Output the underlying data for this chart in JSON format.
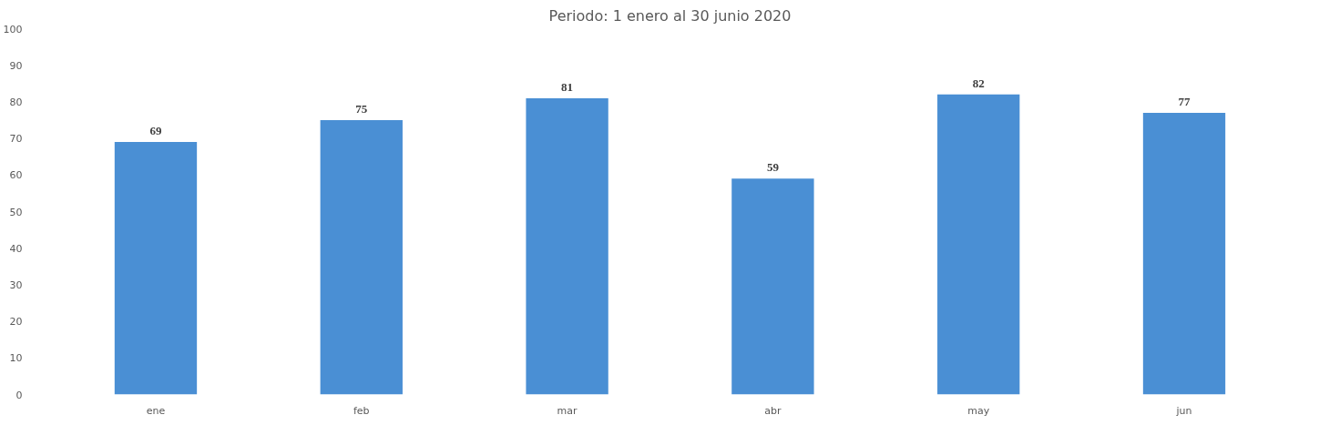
{
  "chart_data": {
    "type": "bar",
    "title": "Periodo: 1 enero al 30 junio 2020",
    "categories": [
      "ene",
      "feb",
      "mar",
      "abr",
      "may",
      "jun"
    ],
    "values": [
      69,
      75,
      81,
      59,
      82,
      77
    ],
    "color": "#4a8fd4",
    "ylim": [
      0,
      100
    ],
    "yticks": [
      0,
      10,
      20,
      30,
      40,
      50,
      60,
      70,
      80,
      90,
      100
    ],
    "data_labels": true,
    "grid": false
  }
}
